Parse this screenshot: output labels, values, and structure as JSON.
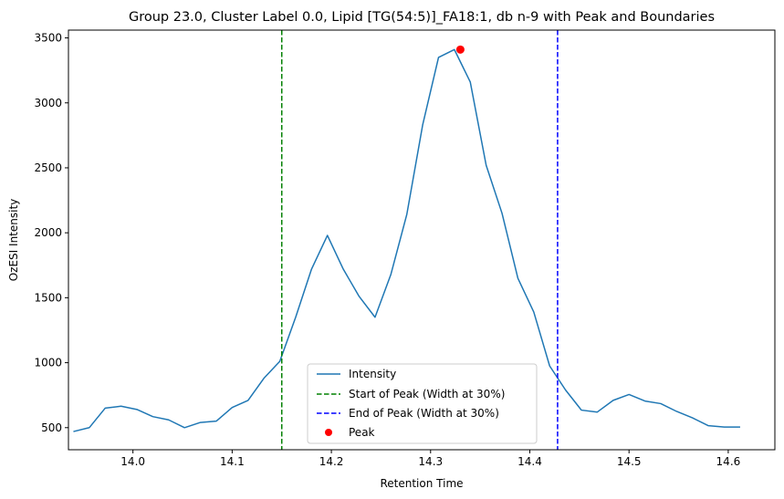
{
  "chart_data": {
    "type": "line",
    "title": "Group 23.0, Cluster Label 0.0, Lipid [TG(54:5)]_FA18:1, db n-9 with Peak and Boundaries",
    "xlabel": "Retention Time",
    "ylabel": "OzESI Intensity",
    "xlim": [
      13.935,
      14.647
    ],
    "ylim": [
      330,
      3560
    ],
    "x_ticks": [
      {
        "value": 14.0,
        "label": "14.0"
      },
      {
        "value": 14.1,
        "label": "14.1"
      },
      {
        "value": 14.2,
        "label": "14.2"
      },
      {
        "value": 14.3,
        "label": "14.3"
      },
      {
        "value": 14.4,
        "label": "14.4"
      },
      {
        "value": 14.5,
        "label": "14.5"
      },
      {
        "value": 14.6,
        "label": "14.6"
      }
    ],
    "y_ticks": [
      {
        "value": 500,
        "label": "500"
      },
      {
        "value": 1000,
        "label": "1000"
      },
      {
        "value": 1500,
        "label": "1500"
      },
      {
        "value": 2000,
        "label": "2000"
      },
      {
        "value": 2500,
        "label": "2500"
      },
      {
        "value": 3000,
        "label": "3000"
      },
      {
        "value": 3500,
        "label": "3500"
      }
    ],
    "grid": false,
    "legend_position": "bottom-center",
    "series": [
      {
        "name": "Intensity",
        "color": "#1f77b4",
        "x": [
          13.94,
          13.956,
          13.972,
          13.988,
          14.004,
          14.02,
          14.036,
          14.052,
          14.068,
          14.084,
          14.1,
          14.116,
          14.132,
          14.148,
          14.164,
          14.18,
          14.196,
          14.212,
          14.228,
          14.244,
          14.26,
          14.276,
          14.292,
          14.308,
          14.324,
          14.34,
          14.356,
          14.372,
          14.388,
          14.404,
          14.42,
          14.436,
          14.452,
          14.468,
          14.484,
          14.5,
          14.516,
          14.532,
          14.548,
          14.564,
          14.58,
          14.596,
          14.612
        ],
        "y": [
          470,
          500,
          650,
          665,
          640,
          585,
          560,
          500,
          540,
          550,
          655,
          710,
          880,
          1010,
          1350,
          1720,
          1980,
          1720,
          1510,
          1350,
          1680,
          2140,
          2830,
          3350,
          3410,
          3160,
          2520,
          2150,
          1650,
          1390,
          975,
          790,
          635,
          620,
          710,
          755,
          705,
          685,
          625,
          575,
          515,
          505,
          505
        ]
      }
    ],
    "vlines": [
      {
        "name": "Start of Peak (Width at 30%)",
        "x": 14.15,
        "color": "#008000",
        "style": "dashed"
      },
      {
        "name": "End of Peak (Width at 30%)",
        "x": 14.428,
        "color": "#0000ff",
        "style": "dashed"
      }
    ],
    "peak": {
      "name": "Peak",
      "x": 14.33,
      "y": 3410,
      "color": "#ff0000"
    }
  }
}
